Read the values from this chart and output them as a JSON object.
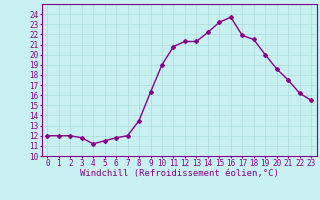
{
  "x": [
    0,
    1,
    2,
    3,
    4,
    5,
    6,
    7,
    8,
    9,
    10,
    11,
    12,
    13,
    14,
    15,
    16,
    17,
    18,
    19,
    20,
    21,
    22,
    23
  ],
  "y": [
    12,
    12,
    12,
    11.8,
    11.2,
    11.5,
    11.8,
    12,
    13.5,
    16.3,
    19.0,
    20.8,
    21.3,
    21.3,
    22.2,
    23.2,
    23.7,
    21.9,
    21.5,
    20.0,
    18.6,
    17.5,
    16.2,
    15.5
  ],
  "color": "#880088",
  "bg_color": "#c8f0f0",
  "grid_color": "#aadddd",
  "xlabel": "Windchill (Refroidissement éolien,°C)",
  "ylim": [
    10,
    25
  ],
  "xlim": [
    -0.5,
    23.5
  ],
  "yticks": [
    10,
    11,
    12,
    13,
    14,
    15,
    16,
    17,
    18,
    19,
    20,
    21,
    22,
    23,
    24
  ],
  "xticks": [
    0,
    1,
    2,
    3,
    4,
    5,
    6,
    7,
    8,
    9,
    10,
    11,
    12,
    13,
    14,
    15,
    16,
    17,
    18,
    19,
    20,
    21,
    22,
    23
  ],
  "marker": "D",
  "markersize": 2,
  "linewidth": 1.0,
  "xlabel_fontsize": 6.5,
  "tick_fontsize": 5.5
}
